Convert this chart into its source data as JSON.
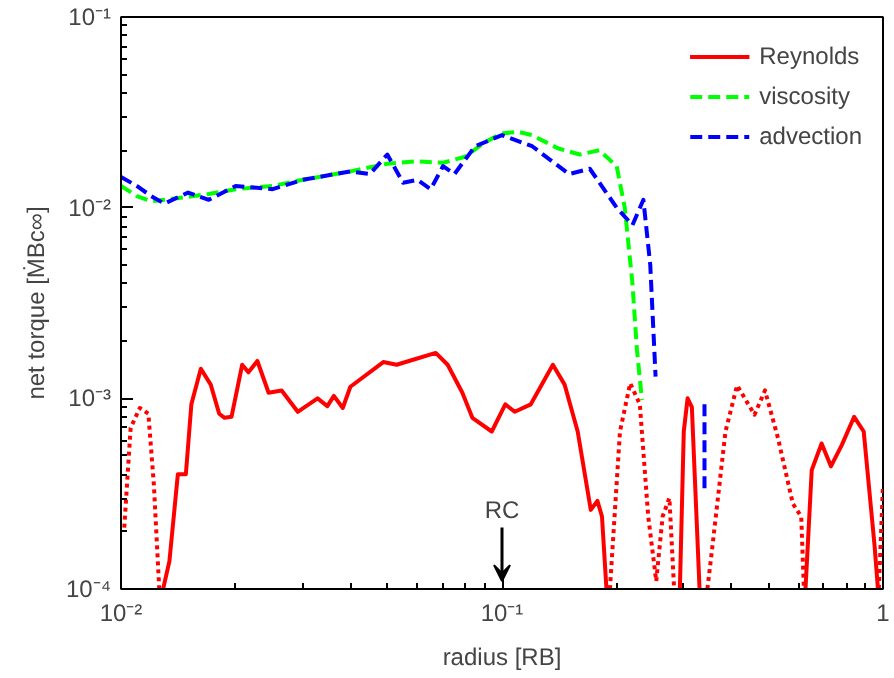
{
  "chart_data": {
    "type": "line",
    "xlabel": "radius [RB]",
    "ylabel": "net torque [ṀBc∞]",
    "log": "xy",
    "xlim": [
      0.01,
      1
    ],
    "ylim": [
      0.0001,
      0.1
    ],
    "xticks": [
      {
        "value": 0.01,
        "label": "10⁻²"
      },
      {
        "value": 0.1,
        "label": "10⁻¹"
      },
      {
        "value": 1,
        "label": "1"
      }
    ],
    "yticks": [
      {
        "value": 0.0001,
        "label": "10⁻⁴"
      },
      {
        "value": 0.001,
        "label": "10⁻³"
      },
      {
        "value": 0.01,
        "label": "10⁻²"
      },
      {
        "value": 0.1,
        "label": "10⁻¹"
      }
    ],
    "grid": false,
    "legend": "top right",
    "annotations": [
      "RC"
    ],
    "series": [
      {
        "name": "Reynolds",
        "color": "#ff0000",
        "line_style": "solid",
        "x": [
          0.0129,
          0.0134,
          0.0141,
          0.0148,
          0.0153,
          0.0162,
          0.0172,
          0.0181,
          0.0187,
          0.0195,
          0.0208,
          0.0216,
          0.0228,
          0.0244,
          0.0264,
          0.0291,
          0.0328,
          0.0348,
          0.0362,
          0.0382,
          0.04,
          0.0488,
          0.0529,
          0.057,
          0.067,
          0.072,
          0.0787,
          0.0836,
          0.094,
          0.102,
          0.108,
          0.119,
          0.136,
          0.146,
          0.158,
          0.171,
          0.178,
          0.183,
          0.188,
          0.24,
          0.293,
          0.3,
          0.307,
          0.315,
          0.33,
          0.5,
          0.626,
          0.65,
          0.69,
          0.73,
          0.78,
          0.84,
          0.89,
          0.95,
          0.97
        ],
        "values": [
          0.0001,
          0.00014,
          0.0004,
          0.0004,
          0.00093,
          0.00143,
          0.00118,
          0.00083,
          0.00079,
          0.0008,
          0.0015,
          0.00137,
          0.00157,
          0.00107,
          0.0011,
          0.00085,
          0.001,
          0.00091,
          0.00103,
          0.00089,
          0.00115,
          0.00155,
          0.0015,
          0.00157,
          0.00173,
          0.0015,
          0.00107,
          0.00079,
          0.00067,
          0.00093,
          0.00085,
          0.00093,
          0.0015,
          0.00118,
          0.00067,
          0.00026,
          0.00029,
          0.00024,
          0.0001,
          null,
          0.0001,
          0.00067,
          0.001,
          0.0009,
          0.0001,
          null,
          0.0001,
          0.00042,
          0.00058,
          0.00044,
          0.00057,
          0.0008,
          0.00067,
          0.00017,
          0.0001
        ]
      },
      {
        "color": "#ff0000",
        "line_style": "dotted",
        "x": [
          0.0102,
          0.0106,
          0.0112,
          0.0118,
          0.0122,
          0.0126,
          0.15,
          0.192,
          0.204,
          0.217,
          0.23,
          0.242,
          0.254,
          0.264,
          0.275,
          0.283,
          0.31,
          0.346,
          0.357,
          0.386,
          0.414,
          0.46,
          0.49,
          0.53,
          0.58,
          0.61,
          0.62,
          0.8,
          0.975,
          1.0
        ],
        "values": [
          0.00021,
          0.0007,
          0.00089,
          0.00083,
          0.00035,
          0.0001,
          null,
          0.0001,
          0.00067,
          0.0012,
          0.00093,
          0.00024,
          0.00011,
          0.00024,
          0.0003,
          0.0001,
          null,
          0.0001,
          0.00017,
          0.00067,
          0.00117,
          0.00082,
          0.0011,
          0.00062,
          0.00028,
          0.00024,
          0.0001,
          null,
          0.0001,
          0.00035
        ]
      },
      {
        "name": "viscosity",
        "color": "#00ff00",
        "line_style": "dashed",
        "x": [
          0.01,
          0.011,
          0.012,
          0.014,
          0.017,
          0.02,
          0.025,
          0.03,
          0.04,
          0.05,
          0.06,
          0.07,
          0.08,
          0.09,
          0.1,
          0.11,
          0.12,
          0.14,
          0.16,
          0.18,
          0.2,
          0.21,
          0.22,
          0.226,
          0.233
        ],
        "values": [
          0.013,
          0.0115,
          0.0108,
          0.0112,
          0.0118,
          0.0125,
          0.013,
          0.014,
          0.0155,
          0.017,
          0.0175,
          0.0172,
          0.0185,
          0.022,
          0.0245,
          0.025,
          0.024,
          0.0205,
          0.019,
          0.02,
          0.0165,
          0.01,
          0.004,
          0.0018,
          0.00098
        ]
      },
      {
        "name": "advection",
        "color": "#0000ff",
        "line_style": "dashed",
        "x": [
          0.01,
          0.011,
          0.012,
          0.013,
          0.015,
          0.017,
          0.02,
          0.025,
          0.03,
          0.04,
          0.045,
          0.05,
          0.055,
          0.06,
          0.065,
          0.07,
          0.075,
          0.085,
          0.1,
          0.12,
          0.15,
          0.17,
          0.2,
          0.22,
          0.235,
          0.245,
          0.253,
          0.3,
          0.34,
          0.34
        ],
        "values": [
          0.0145,
          0.013,
          0.0115,
          0.0105,
          0.012,
          0.011,
          0.013,
          0.0125,
          0.014,
          0.0155,
          0.015,
          0.019,
          0.0135,
          0.014,
          0.0125,
          0.0165,
          0.015,
          0.021,
          0.024,
          0.021,
          0.015,
          0.016,
          0.01,
          0.0081,
          0.011,
          0.005,
          0.0013,
          null,
          0.00093,
          0.00032
        ]
      }
    ]
  }
}
